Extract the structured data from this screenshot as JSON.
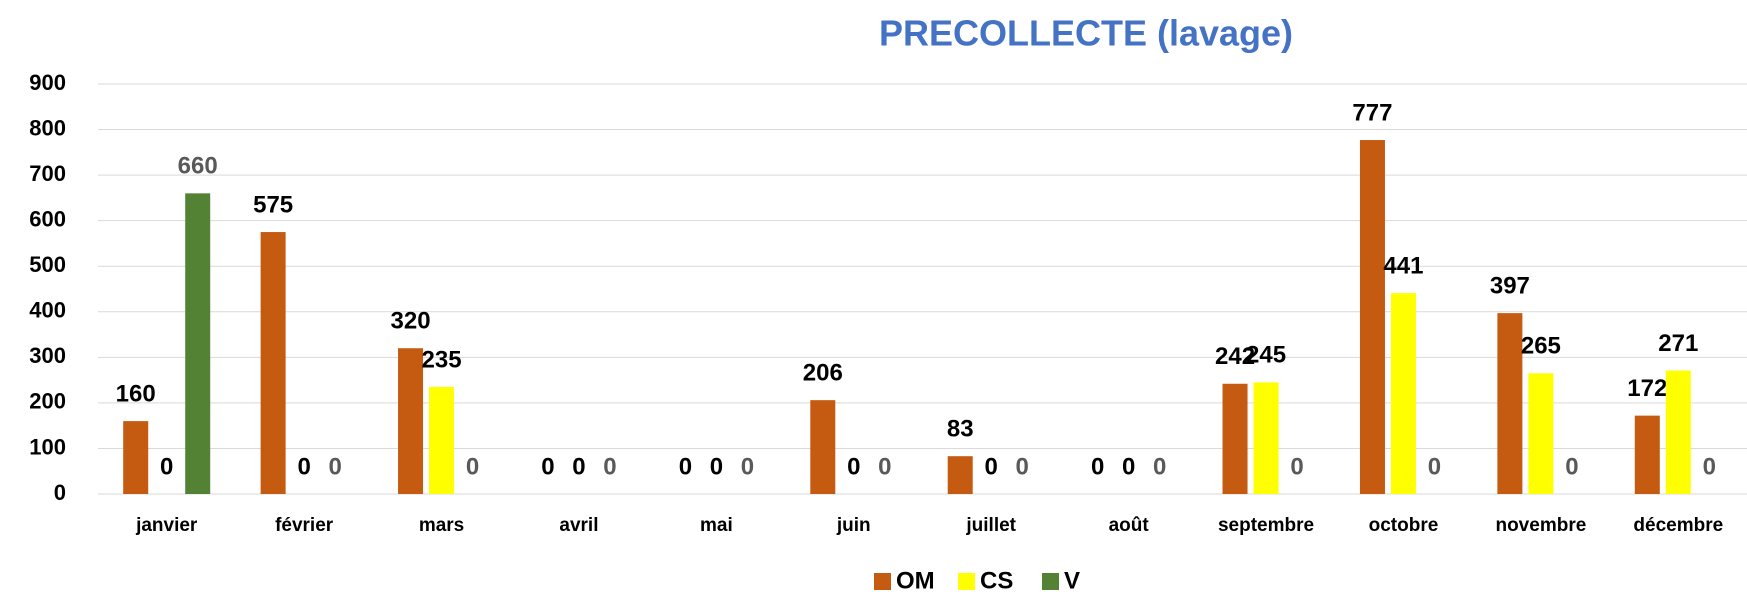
{
  "chart_data": {
    "type": "bar",
    "title": "PRECOLLECTE (lavage)",
    "categories": [
      "janvier",
      "février",
      "mars",
      "avril",
      "mai",
      "juin",
      "juillet",
      "août",
      "septembre",
      "octobre",
      "novembre",
      "décembre"
    ],
    "series": [
      {
        "name": "OM",
        "color": "#c55a11",
        "values": [
          160,
          575,
          320,
          0,
          0,
          206,
          83,
          0,
          242,
          777,
          397,
          172
        ]
      },
      {
        "name": "CS",
        "color": "#ffff00",
        "values": [
          0,
          0,
          235,
          0,
          0,
          0,
          0,
          0,
          245,
          441,
          265,
          271
        ]
      },
      {
        "name": "V",
        "color": "#548235",
        "values": [
          660,
          0,
          0,
          0,
          0,
          0,
          0,
          0,
          0,
          0,
          0,
          0
        ]
      }
    ],
    "ylim": [
      0,
      900
    ],
    "yticks": [
      0,
      100,
      200,
      300,
      400,
      500,
      600,
      700,
      800,
      900
    ],
    "grid": true,
    "legend": "bottom"
  }
}
